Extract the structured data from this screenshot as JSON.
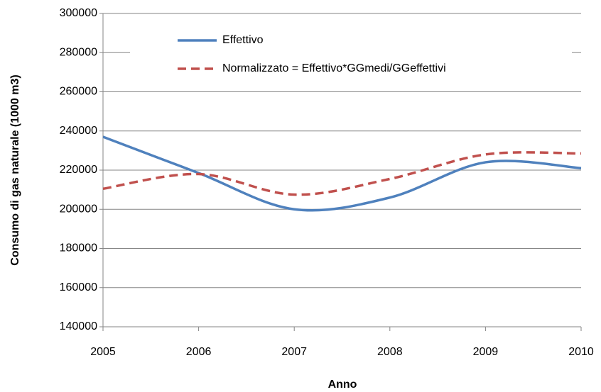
{
  "chart_data": {
    "type": "line",
    "y_label": "Consumo di gas naturale (1000 m3)",
    "x_label": "Anno",
    "x": [
      2005,
      2006,
      2007,
      2008,
      2009,
      2010
    ],
    "series": [
      {
        "name": "Effettivo",
        "color": "#4f81bd",
        "dash": false,
        "values": [
          237000,
          218500,
          200000,
          206000,
          224000,
          221000
        ]
      },
      {
        "name": "Normalizzato = Effettivo*GGmedi/GGeffettivi",
        "color": "#c0504d",
        "dash": true,
        "values": [
          210500,
          218000,
          207500,
          215500,
          228000,
          228500
        ]
      }
    ],
    "xlim": [
      2005,
      2010
    ],
    "xticks": [
      2005,
      2006,
      2007,
      2008,
      2009,
      2010
    ],
    "ylim": [
      140000,
      300000
    ],
    "yticks": [
      140000,
      160000,
      180000,
      200000,
      220000,
      240000,
      260000,
      280000,
      300000
    ],
    "grid": true,
    "smooth": true,
    "legend": "top"
  }
}
